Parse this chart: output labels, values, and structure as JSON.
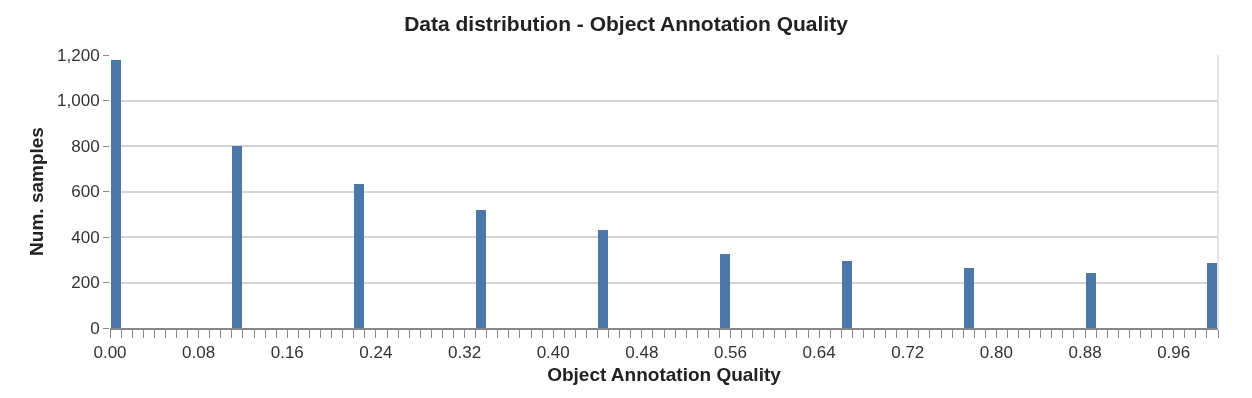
{
  "chart_data": {
    "type": "histogram",
    "title": "Data distribution - Object Annotation Quality",
    "xlabel": "Object Annotation Quality",
    "ylabel": "Num. samples",
    "color": "#4c78a8",
    "bins": [
      0,
      0.01,
      0.02,
      0.03,
      0.04,
      0.05,
      0.06,
      0.07,
      0.08,
      0.09,
      0.1,
      0.11,
      0.12,
      0.13,
      0.14,
      0.15,
      0.16,
      0.17,
      0.18,
      0.19,
      0.2,
      0.21,
      0.22,
      0.23,
      0.24,
      0.25,
      0.26,
      0.27,
      0.28,
      0.29,
      0.3,
      0.31,
      0.32,
      0.33,
      0.34,
      0.35,
      0.36,
      0.37,
      0.38,
      0.39,
      0.4,
      0.41,
      0.42,
      0.43,
      0.44,
      0.45,
      0.46,
      0.47,
      0.48,
      0.49,
      0.5,
      0.51,
      0.52,
      0.53,
      0.54,
      0.55,
      0.56,
      0.57,
      0.58,
      0.59,
      0.6,
      0.61,
      0.62,
      0.63,
      0.64,
      0.65,
      0.66,
      0.67,
      0.68,
      0.69,
      0.7,
      0.71,
      0.72,
      0.73,
      0.74,
      0.75,
      0.76,
      0.77,
      0.78,
      0.79,
      0.8,
      0.81,
      0.82,
      0.83,
      0.84,
      0.85,
      0.86,
      0.87,
      0.88,
      0.89,
      0.9,
      0.91,
      0.92,
      0.93,
      0.94,
      0.95,
      0.96,
      0.97,
      0.98,
      0.99,
      1
    ],
    "values": [
      1180,
      0,
      0,
      0,
      0,
      0,
      0,
      0,
      0,
      0,
      0,
      800,
      0,
      0,
      0,
      0,
      0,
      0,
      0,
      0,
      0,
      0,
      633,
      0,
      0,
      0,
      0,
      0,
      0,
      0,
      0,
      0,
      0,
      519,
      0,
      0,
      0,
      0,
      0,
      0,
      0,
      0,
      0,
      0,
      430,
      0,
      0,
      0,
      0,
      0,
      0,
      0,
      0,
      0,
      0,
      325,
      0,
      0,
      0,
      0,
      0,
      0,
      0,
      0,
      0,
      0,
      296,
      0,
      0,
      0,
      0,
      0,
      0,
      0,
      0,
      0,
      0,
      262,
      0,
      0,
      0,
      0,
      0,
      0,
      0,
      0,
      0,
      0,
      242,
      0,
      0,
      0,
      0,
      0,
      0,
      0,
      0,
      0,
      0,
      284
    ],
    "xlim": [
      0,
      1
    ],
    "ylim": [
      0,
      1200
    ],
    "xticks": [
      {
        "value": 0,
        "label": "0.00"
      },
      {
        "value": 0.01,
        "label": null
      },
      {
        "value": 0.02,
        "label": null
      },
      {
        "value": 0.03,
        "label": null
      },
      {
        "value": 0.04,
        "label": null
      },
      {
        "value": 0.05,
        "label": null
      },
      {
        "value": 0.06,
        "label": null
      },
      {
        "value": 0.07,
        "label": null
      },
      {
        "value": 0.08,
        "label": "0.08"
      },
      {
        "value": 0.09,
        "label": null
      },
      {
        "value": 0.1,
        "label": null
      },
      {
        "value": 0.11,
        "label": null
      },
      {
        "value": 0.12,
        "label": null
      },
      {
        "value": 0.13,
        "label": null
      },
      {
        "value": 0.14,
        "label": null
      },
      {
        "value": 0.15,
        "label": null
      },
      {
        "value": 0.16,
        "label": "0.16"
      },
      {
        "value": 0.17,
        "label": null
      },
      {
        "value": 0.18,
        "label": null
      },
      {
        "value": 0.19,
        "label": null
      },
      {
        "value": 0.2,
        "label": null
      },
      {
        "value": 0.21,
        "label": null
      },
      {
        "value": 0.22,
        "label": null
      },
      {
        "value": 0.23,
        "label": null
      },
      {
        "value": 0.24,
        "label": "0.24"
      },
      {
        "value": 0.25,
        "label": null
      },
      {
        "value": 0.26,
        "label": null
      },
      {
        "value": 0.27,
        "label": null
      },
      {
        "value": 0.28,
        "label": null
      },
      {
        "value": 0.29,
        "label": null
      },
      {
        "value": 0.3,
        "label": null
      },
      {
        "value": 0.31,
        "label": null
      },
      {
        "value": 0.32,
        "label": "0.32"
      },
      {
        "value": 0.33,
        "label": null
      },
      {
        "value": 0.34,
        "label": null
      },
      {
        "value": 0.35,
        "label": null
      },
      {
        "value": 0.36,
        "label": null
      },
      {
        "value": 0.37,
        "label": null
      },
      {
        "value": 0.38,
        "label": null
      },
      {
        "value": 0.39,
        "label": null
      },
      {
        "value": 0.4,
        "label": "0.40"
      },
      {
        "value": 0.41,
        "label": null
      },
      {
        "value": 0.42,
        "label": null
      },
      {
        "value": 0.43,
        "label": null
      },
      {
        "value": 0.44,
        "label": null
      },
      {
        "value": 0.45,
        "label": null
      },
      {
        "value": 0.46,
        "label": null
      },
      {
        "value": 0.47,
        "label": null
      },
      {
        "value": 0.48,
        "label": "0.48"
      },
      {
        "value": 0.49,
        "label": null
      },
      {
        "value": 0.5,
        "label": null
      },
      {
        "value": 0.51,
        "label": null
      },
      {
        "value": 0.52,
        "label": null
      },
      {
        "value": 0.53,
        "label": null
      },
      {
        "value": 0.54,
        "label": null
      },
      {
        "value": 0.55,
        "label": null
      },
      {
        "value": 0.56,
        "label": "0.56"
      },
      {
        "value": 0.57,
        "label": null
      },
      {
        "value": 0.58,
        "label": null
      },
      {
        "value": 0.59,
        "label": null
      },
      {
        "value": 0.6,
        "label": null
      },
      {
        "value": 0.61,
        "label": null
      },
      {
        "value": 0.62,
        "label": null
      },
      {
        "value": 0.63,
        "label": null
      },
      {
        "value": 0.64,
        "label": "0.64"
      },
      {
        "value": 0.65,
        "label": null
      },
      {
        "value": 0.66,
        "label": null
      },
      {
        "value": 0.67,
        "label": null
      },
      {
        "value": 0.68,
        "label": null
      },
      {
        "value": 0.69,
        "label": null
      },
      {
        "value": 0.7,
        "label": null
      },
      {
        "value": 0.71,
        "label": null
      },
      {
        "value": 0.72,
        "label": "0.72"
      },
      {
        "value": 0.73,
        "label": null
      },
      {
        "value": 0.74,
        "label": null
      },
      {
        "value": 0.75,
        "label": null
      },
      {
        "value": 0.76,
        "label": null
      },
      {
        "value": 0.77,
        "label": null
      },
      {
        "value": 0.78,
        "label": null
      },
      {
        "value": 0.79,
        "label": null
      },
      {
        "value": 0.8,
        "label": "0.80"
      },
      {
        "value": 0.81,
        "label": null
      },
      {
        "value": 0.82,
        "label": null
      },
      {
        "value": 0.83,
        "label": null
      },
      {
        "value": 0.84,
        "label": null
      },
      {
        "value": 0.85,
        "label": null
      },
      {
        "value": 0.86,
        "label": null
      },
      {
        "value": 0.87,
        "label": null
      },
      {
        "value": 0.88,
        "label": "0.88"
      },
      {
        "value": 0.89,
        "label": null
      },
      {
        "value": 0.9,
        "label": null
      },
      {
        "value": 0.91,
        "label": null
      },
      {
        "value": 0.92,
        "label": null
      },
      {
        "value": 0.93,
        "label": null
      },
      {
        "value": 0.94,
        "label": null
      },
      {
        "value": 0.95,
        "label": null
      },
      {
        "value": 0.96,
        "label": "0.96"
      },
      {
        "value": 0.97,
        "label": null
      },
      {
        "value": 0.98,
        "label": null
      },
      {
        "value": 0.99,
        "label": null
      },
      {
        "value": 1,
        "label": null
      }
    ],
    "yticks": [
      0,
      200,
      400,
      600,
      800,
      {
        "value": 1000,
        "label": "1,000"
      },
      {
        "value": 1200,
        "label": "1,200"
      }
    ],
    "grid": "y"
  }
}
